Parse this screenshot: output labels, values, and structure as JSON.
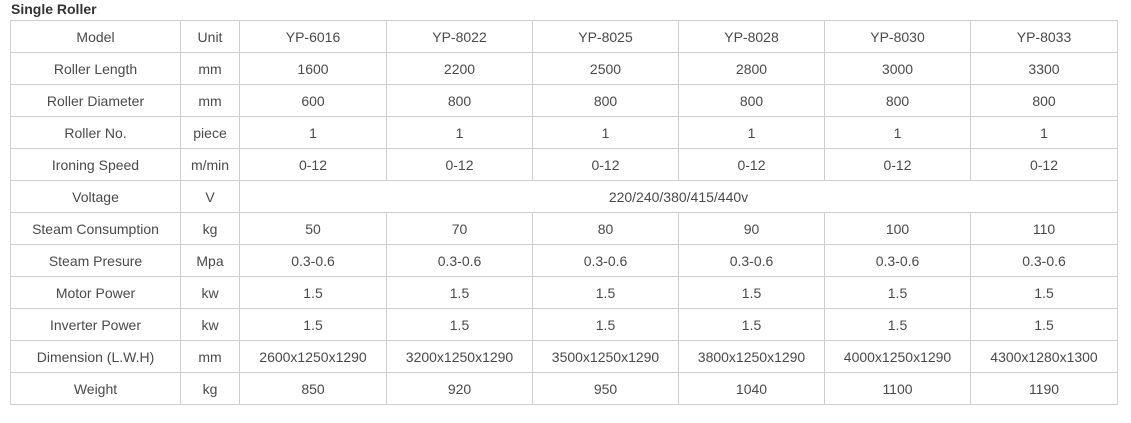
{
  "title": "Single Roller",
  "header": {
    "label": "Model",
    "unit": "Unit",
    "models": [
      "YP-6016",
      "YP-8022",
      "YP-8025",
      "YP-8028",
      "YP-8030",
      "YP-8033"
    ]
  },
  "rows": [
    {
      "label": "Roller Length",
      "unit": "mm",
      "values": [
        "1600",
        "2200",
        "2500",
        "2800",
        "3000",
        "3300"
      ]
    },
    {
      "label": "Roller Diameter",
      "unit": "mm",
      "values": [
        "600",
        "800",
        "800",
        "800",
        "800",
        "800"
      ]
    },
    {
      "label": "Roller No.",
      "unit": "piece",
      "values": [
        "1",
        "1",
        "1",
        "1",
        "1",
        "1"
      ]
    },
    {
      "label": "Ironing Speed",
      "unit": "m/min",
      "values": [
        "0-12",
        "0-12",
        "0-12",
        "0-12",
        "0-12",
        "0-12"
      ]
    },
    {
      "label": "Voltage",
      "unit": "V",
      "merged": "220/240/380/415/440v"
    },
    {
      "label": "Steam Consumption",
      "unit": "kg",
      "values": [
        "50",
        "70",
        "80",
        "90",
        "100",
        "110"
      ]
    },
    {
      "label": "Steam Presure",
      "unit": "Mpa",
      "values": [
        "0.3-0.6",
        "0.3-0.6",
        "0.3-0.6",
        "0.3-0.6",
        "0.3-0.6",
        "0.3-0.6"
      ]
    },
    {
      "label": "Motor Power",
      "unit": "kw",
      "values": [
        "1.5",
        "1.5",
        "1.5",
        "1.5",
        "1.5",
        "1.5"
      ]
    },
    {
      "label": "Inverter Power",
      "unit": "kw",
      "values": [
        "1.5",
        "1.5",
        "1.5",
        "1.5",
        "1.5",
        "1.5"
      ]
    },
    {
      "label": "Dimension (L.W.H)",
      "unit": "mm",
      "values": [
        "2600x1250x1290",
        "3200x1250x1290",
        "3500x1250x1290",
        "3800x1250x1290",
        "4000x1250x1290",
        "4300x1280x1300"
      ]
    },
    {
      "label": "Weight",
      "unit": "kg",
      "values": [
        "850",
        "920",
        "950",
        "1040",
        "1100",
        "1190"
      ]
    }
  ]
}
